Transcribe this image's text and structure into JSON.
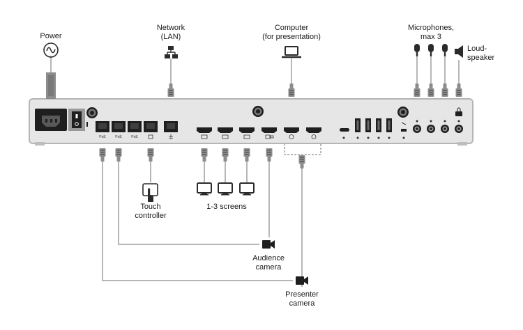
{
  "labels": {
    "power": "Power",
    "network": [
      "Network",
      "(LAN)"
    ],
    "computer": [
      "Computer",
      "(for presentation)"
    ],
    "microphones": [
      "Microphones,",
      "max 3"
    ],
    "loudspeaker": [
      "Loud-",
      "speaker"
    ],
    "touch": [
      "Touch",
      "controller"
    ],
    "screens": "1-3 screens",
    "audience": [
      "Audience",
      "camera"
    ],
    "presenter": [
      "Presenter",
      "camera"
    ]
  },
  "port_marks": {
    "poe": [
      "PoE",
      "PoE",
      "PoE"
    ]
  },
  "colors": {
    "line": "#6f6f6f",
    "panel": "#e6e6e6",
    "panel_edge": "#b5b5b5",
    "port": "#1f1f1f",
    "icon": "#2b2b2b",
    "plug": "#8c8c8c"
  },
  "icons": [
    "power-icon",
    "network-icon",
    "laptop-icon",
    "microphone-icon",
    "loudspeaker-icon",
    "touch-controller-icon",
    "screen-icon",
    "camera-icon"
  ]
}
